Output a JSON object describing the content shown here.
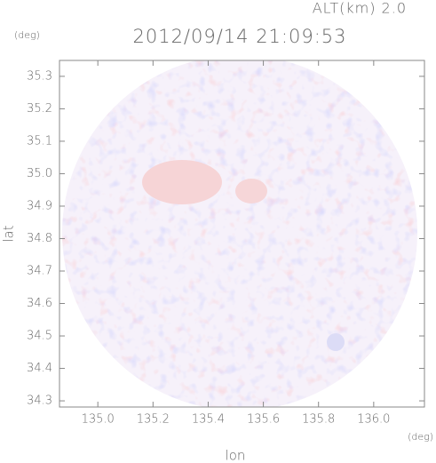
{
  "chart_data": {
    "type": "radar-field",
    "title": "2012/09/14 21:09:53",
    "altitude_label": "ALT(km) 2.0",
    "y_unit": "(deg)",
    "x_unit": "(deg)",
    "xlabel": "lon",
    "ylabel": "lat",
    "xlim": [
      134.861,
      136.184
    ],
    "ylim": [
      34.281,
      35.349
    ],
    "xticks": [
      {
        "value": 135.0,
        "label": "135.0"
      },
      135.2,
      135.4,
      135.6,
      135.8,
      {
        "value": 136.0,
        "label": "136.0"
      }
    ],
    "yticks": [
      35.3,
      35.2,
      35.1,
      {
        "value": 35.0,
        "label": "35.0"
      },
      34.9,
      34.8,
      34.7,
      34.6,
      34.5,
      34.4,
      34.3
    ]
  }
}
